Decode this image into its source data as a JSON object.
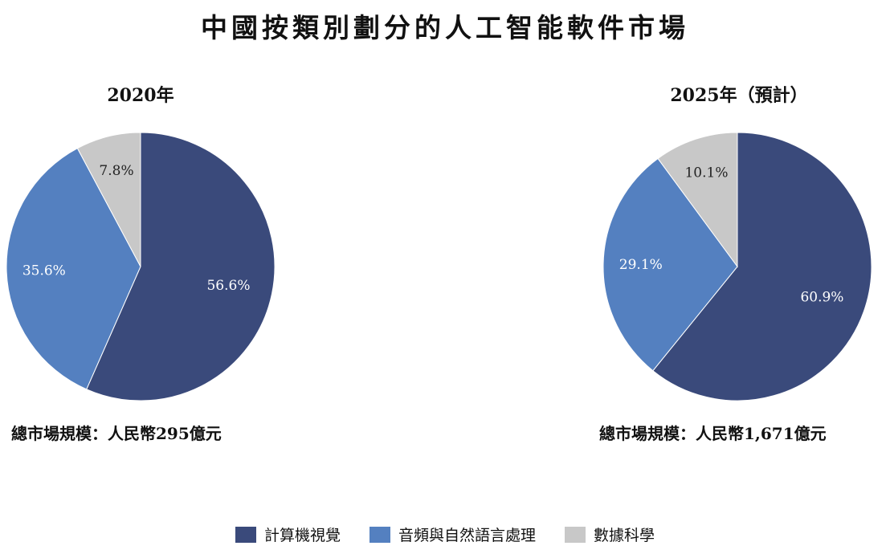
{
  "title": "中國按類別劃分的人工智能軟件市場",
  "legend": [
    {
      "label": "計算機視覺",
      "color": "#3a4a7b"
    },
    {
      "label": "音頻與自然語言處理",
      "color": "#5480c0"
    },
    {
      "label": "數據科學",
      "color": "#c8c8c8"
    }
  ],
  "chart_data": [
    {
      "type": "pie",
      "title": "2020年",
      "categories": [
        "計算機視覺",
        "音頻與自然語言處理",
        "數據科學"
      ],
      "values": [
        56.6,
        35.6,
        7.8
      ],
      "labels": [
        "56.6%",
        "35.6%",
        "7.8%"
      ],
      "colors": [
        "#3a4a7b",
        "#5480c0",
        "#c8c8c8"
      ],
      "footer": "總市場規模：人民幣295億元"
    },
    {
      "type": "pie",
      "title": "2025年（預計）",
      "categories": [
        "計算機視覺",
        "音頻與自然語言處理",
        "數據科學"
      ],
      "values": [
        60.9,
        29.1,
        10.1
      ],
      "labels": [
        "60.9%",
        "29.1%",
        "10.1%"
      ],
      "colors": [
        "#3a4a7b",
        "#5480c0",
        "#c8c8c8"
      ],
      "footer": "總市場規模：人民幣1,671億元"
    }
  ]
}
